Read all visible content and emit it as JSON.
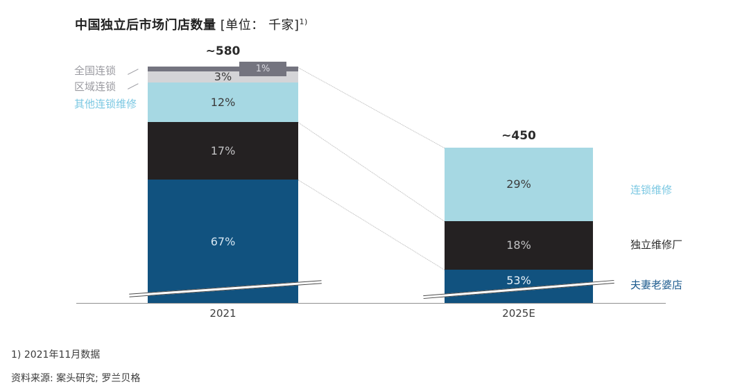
{
  "title": {
    "main": "中国独立后市场门店数量",
    "unit": " [单位： 千家]",
    "footnote_ref": "1)"
  },
  "chart_data": {
    "type": "bar",
    "subtype": "stacked-percentage-columns",
    "title": "中国独立后市场门店数量 [单位： 千家]",
    "unit": "千家",
    "categories": [
      "2021",
      "2025E"
    ],
    "bars": [
      {
        "category": "2021",
        "total_label": "~580",
        "segments": [
          {
            "label": "全国连锁",
            "value_pct": 1,
            "display": "1%",
            "color": "#74747f"
          },
          {
            "label": "区域连锁",
            "value_pct": 3,
            "display": "3%",
            "color": "#d4d4d7"
          },
          {
            "label": "其他连锁维修",
            "value_pct": 12,
            "display": "12%",
            "color": "#a6d8e3"
          },
          {
            "label": "独立维修厂",
            "value_pct": 17,
            "display": "17%",
            "color": "#242122"
          },
          {
            "label": "夫妻老婆店",
            "value_pct": 67,
            "display": "67%",
            "color": "#11527f"
          }
        ]
      },
      {
        "category": "2025E",
        "total_label": "~450",
        "segments": [
          {
            "label": "连锁维修",
            "value_pct": 29,
            "display": "29%",
            "color": "#a6d8e3"
          },
          {
            "label": "独立维修厂",
            "value_pct": 18,
            "display": "18%",
            "color": "#242122"
          },
          {
            "label": "夫妻老婆店",
            "value_pct": 53,
            "display": "53%",
            "color": "#11527f"
          }
        ]
      }
    ],
    "left_labels": [
      "全国连锁",
      "区域连锁",
      "其他连锁维修"
    ],
    "right_labels": [
      "连锁维修",
      "独立维修厂",
      "夫妻老婆店"
    ],
    "x_tick_labels": [
      "2021",
      "2025E"
    ],
    "axis_break": true,
    "connector_style": "dotted",
    "legend_position": "left-and-right-of-bars",
    "grid": false
  },
  "colors": {
    "dark_blue": "#11527f",
    "black": "#242122",
    "light_blue": "#a6d8e3",
    "light_gray": "#d4d4d7",
    "dark_gray": "#74747f",
    "light_blue_label_text": "#79c7e2",
    "dark_blue_label_text": "#1f5c8f",
    "gray_label_text": "#9a9aa0"
  },
  "footnotes": [
    "1) 2021年11月数据",
    "资料来源: 案头研究; 罗兰贝格"
  ]
}
